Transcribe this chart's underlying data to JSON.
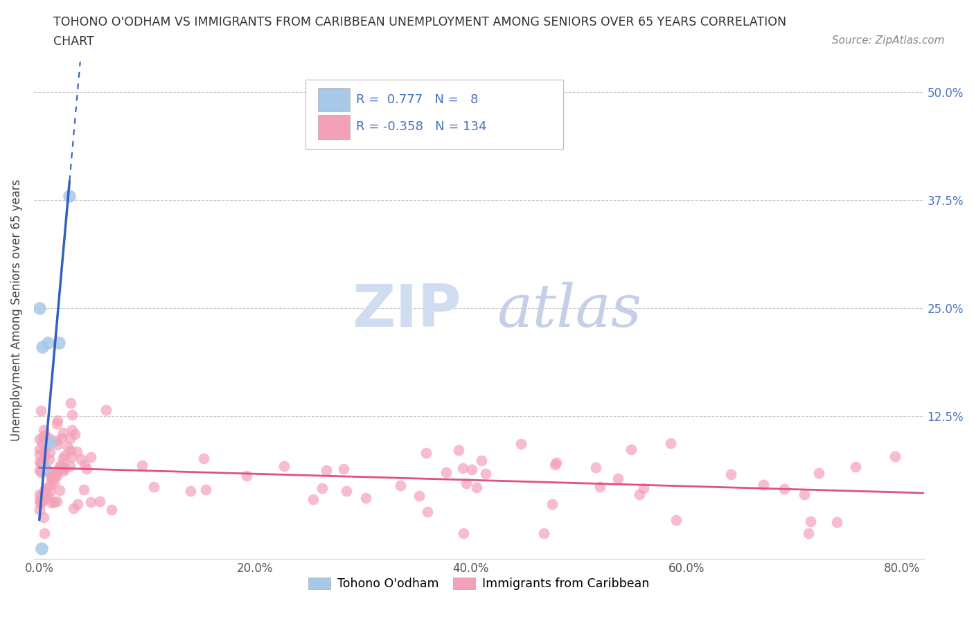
{
  "title_line1": "TOHONO O'ODHAM VS IMMIGRANTS FROM CARIBBEAN UNEMPLOYMENT AMONG SENIORS OVER 65 YEARS CORRELATION",
  "title_line2": "CHART",
  "source_text": "Source: ZipAtlas.com",
  "ylabel": "Unemployment Among Seniors over 65 years",
  "r_tohono": 0.777,
  "n_tohono": 8,
  "r_caribbean": -0.358,
  "n_caribbean": 134,
  "tohono_color": "#a8c8e8",
  "caribbean_color": "#f4a0b8",
  "tohono_line_color": "#3060c0",
  "caribbean_line_color": "#e05080",
  "background_color": "#ffffff",
  "watermark_zip": "ZIP",
  "watermark_atlas": "atlas",
  "tohono_x": [
    0.0,
    0.003,
    0.005,
    0.008,
    0.01,
    0.018,
    0.028,
    0.002
  ],
  "tohono_y": [
    0.25,
    0.205,
    0.065,
    0.21,
    0.095,
    0.21,
    0.38,
    -0.028
  ],
  "xlim": [
    -0.005,
    0.82
  ],
  "ylim": [
    -0.04,
    0.535
  ],
  "xticks": [
    0.0,
    0.2,
    0.4,
    0.6,
    0.8
  ],
  "yticks": [
    0.0,
    0.125,
    0.25,
    0.375,
    0.5
  ],
  "xticklabels": [
    "0.0%",
    "20.0%",
    "40.0%",
    "60.0%",
    "80.0%"
  ],
  "yticklabels_right": [
    "",
    "12.5%",
    "25.0%",
    "37.5%",
    "50.0%"
  ],
  "legend_label_tohono": "Tohono O'odham",
  "legend_label_caribbean": "Immigrants from Caribbean",
  "tick_color": "#4472c4",
  "grid_color": "#cccccc"
}
